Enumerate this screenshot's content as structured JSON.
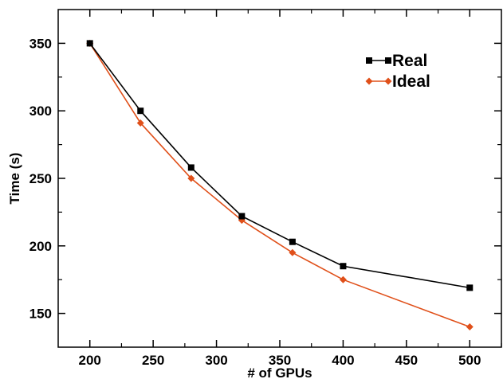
{
  "chart_data": {
    "type": "line",
    "title": "",
    "xlabel": "# of GPUs",
    "ylabel": "Time (s)",
    "xlim": [
      175,
      525
    ],
    "ylim": [
      125,
      375
    ],
    "xticks": [
      200,
      250,
      300,
      350,
      400,
      450,
      500
    ],
    "yticks": [
      150,
      200,
      250,
      300,
      350
    ],
    "grid": false,
    "legend_position": "top-right",
    "series": [
      {
        "name": "Real",
        "color": "#000000",
        "marker": "square",
        "x": [
          200,
          240,
          280,
          320,
          360,
          400,
          500
        ],
        "y": [
          350,
          300,
          258,
          222,
          203,
          185,
          169
        ]
      },
      {
        "name": "Ideal",
        "color": "#e0501a",
        "marker": "diamond",
        "x": [
          200,
          240,
          280,
          320,
          360,
          400,
          500
        ],
        "y": [
          350,
          291,
          250,
          219,
          195,
          175,
          140
        ]
      }
    ]
  }
}
